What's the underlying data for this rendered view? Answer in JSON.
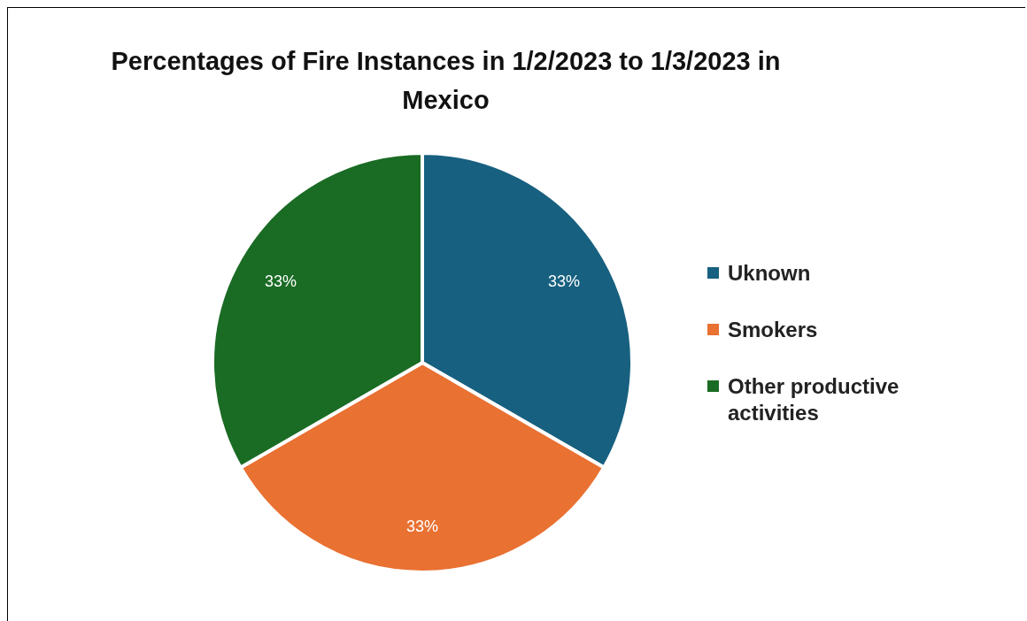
{
  "chart_data": {
    "type": "pie",
    "title": "Percentages of Fire Instances in 1/2/2023 to 1/3/2023 in Mexico",
    "categories": [
      "Uknown",
      "Smokers",
      "Other productive activities"
    ],
    "values": [
      33,
      33,
      33
    ],
    "colors": [
      "#17607f",
      "#e97132",
      "#1a6b24"
    ],
    "value_labels": [
      "33%",
      "33%",
      "33%"
    ],
    "legend": "right"
  }
}
